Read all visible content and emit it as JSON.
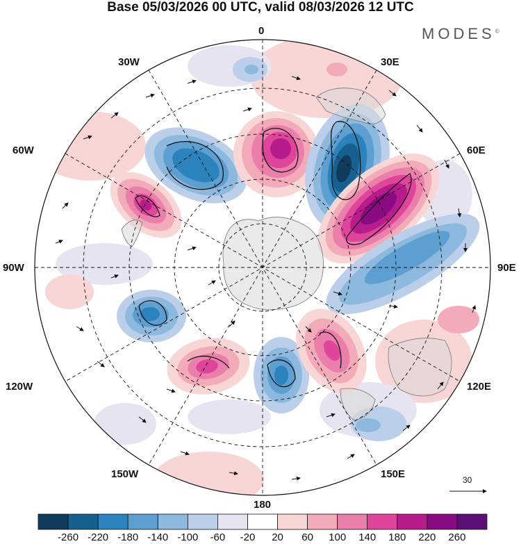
{
  "title": "Base 05/03/2026 00 UTC, valid 08/03/2026 12 UTC",
  "brand": "MODES",
  "brand_mark": "©",
  "longitudes": {
    "top": "0",
    "bottom": "180",
    "left": "90W",
    "right": "90E",
    "nw30": "30W",
    "nw60": "60W",
    "ne30": "30E",
    "ne60": "60E",
    "sw120": "120W",
    "sw150": "150W",
    "se120": "120E",
    "se150": "150E"
  },
  "vector_reference": "30",
  "colors": {
    "scale": [
      "#0f3b5c",
      "#15608e",
      "#2c82bc",
      "#5d9fd0",
      "#8eb9de",
      "#bccfea",
      "#e6e4f0",
      "#ffffff",
      "#f8d6d6",
      "#f3aab9",
      "#eb7fac",
      "#e0459c",
      "#b81b8b",
      "#8a0a83",
      "#5c0f74"
    ],
    "land": "#e6e6e6",
    "continent": "#efefef"
  },
  "colorbar_labels": [
    "-260",
    "-220",
    "-180",
    "-140",
    "-100",
    "-60",
    "-20",
    "20",
    "60",
    "100",
    "140",
    "180",
    "220",
    "260"
  ]
}
